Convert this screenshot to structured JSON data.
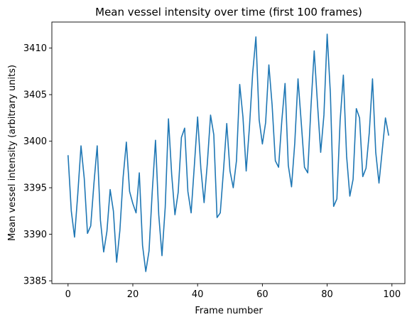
{
  "chart_data": {
    "type": "line",
    "title": "Mean vessel intensity over time (first 100 frames)",
    "xlabel": "Frame number",
    "ylabel": "Mean vessel intensity (arbitrary units)",
    "xlim": [
      -5,
      104
    ],
    "ylim": [
      3384.7,
      3412.8
    ],
    "xticks": [
      0,
      20,
      40,
      60,
      80,
      100
    ],
    "yticks": [
      3385,
      3390,
      3395,
      3400,
      3405,
      3410
    ],
    "grid": false,
    "legend": "none",
    "series": [
      {
        "color": "#1f77b4",
        "x": [
          0,
          1,
          2,
          3,
          4,
          5,
          6,
          7,
          8,
          9,
          10,
          11,
          12,
          13,
          14,
          15,
          16,
          17,
          18,
          19,
          20,
          21,
          22,
          23,
          24,
          25,
          26,
          27,
          28,
          29,
          30,
          31,
          32,
          33,
          34,
          35,
          36,
          37,
          38,
          39,
          40,
          41,
          42,
          43,
          44,
          45,
          46,
          47,
          48,
          49,
          50,
          51,
          52,
          53,
          54,
          55,
          56,
          57,
          58,
          59,
          60,
          61,
          62,
          63,
          64,
          65,
          66,
          67,
          68,
          69,
          70,
          71,
          72,
          73,
          74,
          75,
          76,
          77,
          78,
          79,
          80,
          81,
          82,
          83,
          84,
          85,
          86,
          87,
          88,
          89,
          90,
          91,
          92,
          93,
          94,
          95,
          96,
          97,
          98,
          99
        ],
        "values": [
          3398.5,
          3392.5,
          3389.7,
          3394.3,
          3399.5,
          3396.0,
          3390.1,
          3390.9,
          3395.5,
          3399.5,
          3391.5,
          3388.1,
          3390.3,
          3394.8,
          3392.5,
          3387.0,
          3390.4,
          3396.1,
          3399.9,
          3394.6,
          3393.3,
          3392.3,
          3396.6,
          3388.8,
          3386.0,
          3388.2,
          3394.6,
          3400.1,
          3392.1,
          3387.7,
          3392.9,
          3402.4,
          3396.4,
          3392.1,
          3394.5,
          3400.4,
          3401.4,
          3394.6,
          3392.3,
          3397.4,
          3402.6,
          3397.1,
          3393.4,
          3397.6,
          3402.8,
          3400.7,
          3391.8,
          3392.3,
          3396.9,
          3401.9,
          3396.8,
          3395.0,
          3397.9,
          3406.1,
          3402.6,
          3396.8,
          3401.5,
          3407.3,
          3411.2,
          3402.3,
          3399.7,
          3402.0,
          3408.2,
          3403.9,
          3397.9,
          3397.2,
          3402.2,
          3406.2,
          3397.4,
          3395.1,
          3399.8,
          3406.7,
          3402.0,
          3397.2,
          3396.6,
          3403.7,
          3409.7,
          3404.1,
          3398.8,
          3402.8,
          3411.5,
          3405.1,
          3393.0,
          3393.8,
          3402.2,
          3407.1,
          3398.4,
          3394.1,
          3395.9,
          3403.5,
          3402.5,
          3396.2,
          3397.1,
          3400.9,
          3406.7,
          3398.8,
          3395.5,
          3399.0,
          3402.5,
          3400.6
        ]
      }
    ]
  }
}
